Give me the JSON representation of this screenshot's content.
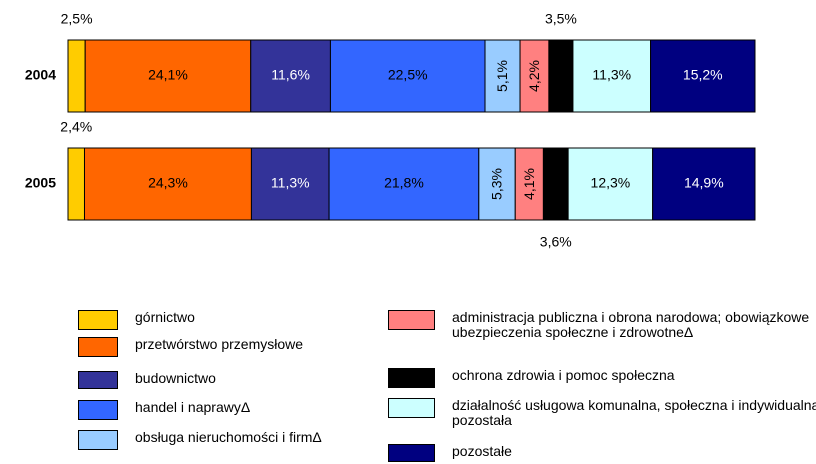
{
  "chart_data": {
    "type": "bar",
    "orientation": "horizontal",
    "stacked": "percent",
    "categories": [
      "2004",
      "2005"
    ],
    "series": [
      {
        "name": "górnictwo",
        "color": "#ffcc00",
        "values": [
          2.5,
          2.4
        ],
        "value_labels": [
          "2,5%",
          "2,4%"
        ]
      },
      {
        "name": "przetwórstwo przemysłowe",
        "color": "#ff6600",
        "values": [
          24.1,
          24.3
        ],
        "value_labels": [
          "24,1%",
          "24,3%"
        ]
      },
      {
        "name": "budownictwo",
        "color": "#333399",
        "values": [
          11.6,
          11.3
        ],
        "value_labels": [
          "11,6%",
          "11,3%"
        ]
      },
      {
        "name": "handel i naprawyΔ",
        "color": "#3366ff",
        "values": [
          22.5,
          21.8
        ],
        "value_labels": [
          "22,5%",
          "21,8%"
        ]
      },
      {
        "name": "obsługa nieruchomości i firmΔ",
        "color": "#99ccff",
        "values": [
          5.1,
          5.3
        ],
        "value_labels": [
          "5,1%",
          "5,3%"
        ]
      },
      {
        "name": "administracja publiczna i obrona narodowa; obowiązkowe ubezpieczenia społeczne i zdrowotneΔ",
        "color": "#ff8080",
        "values": [
          4.2,
          4.1
        ],
        "value_labels": [
          "4,2%",
          "4,1%"
        ]
      },
      {
        "name": "ochrona zdrowia i pomoc społeczna",
        "color": "#000000",
        "values": [
          3.5,
          3.6
        ],
        "value_labels": [
          "3,5%",
          "3,6%"
        ]
      },
      {
        "name": "działalność usługowa komunalna, społeczna i indywidualna, pozostała",
        "color": "#ccffff",
        "values": [
          11.3,
          12.3
        ],
        "value_labels": [
          "11,3%",
          "12,3%"
        ]
      },
      {
        "name": "pozostałe",
        "color": "#000080",
        "values": [
          15.2,
          14.9
        ],
        "value_labels": [
          "15,2%",
          "14,9%"
        ]
      }
    ]
  }
}
